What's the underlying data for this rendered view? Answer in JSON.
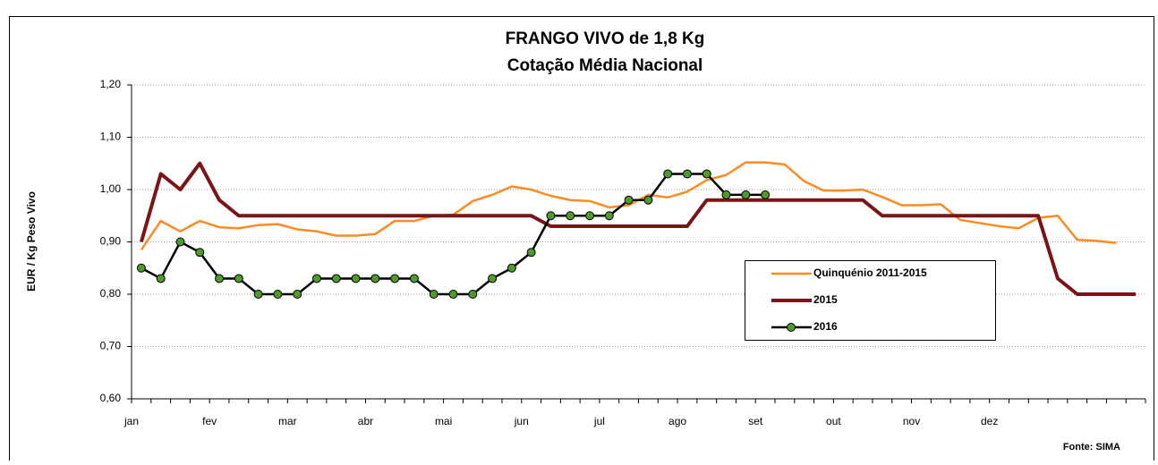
{
  "chart_data": {
    "type": "line",
    "title": "FRANGO VIVO de 1,8 Kg",
    "subtitle": "Cotação Média Nacional",
    "y_label": "EUR / Kg Peso Vivo",
    "source": "Fonte: SIMA",
    "categories": [
      "jan",
      null,
      null,
      null,
      "fev",
      null,
      null,
      null,
      "mar",
      null,
      null,
      null,
      "abr",
      null,
      null,
      null,
      "mai",
      null,
      null,
      null,
      "jun",
      null,
      null,
      null,
      "jul",
      null,
      null,
      null,
      "ago",
      null,
      null,
      null,
      "set",
      null,
      null,
      null,
      "out",
      null,
      null,
      null,
      "nov",
      null,
      null,
      null,
      "dez",
      null,
      null,
      null,
      null,
      null,
      null,
      null
    ],
    "ylim": [
      0.6,
      1.2
    ],
    "yticks": [
      {
        "value": 0.6,
        "label": "0,60"
      },
      {
        "value": 0.7,
        "label": "0,70"
      },
      {
        "value": 0.8,
        "label": "0,80"
      },
      {
        "value": 0.9,
        "label": "0,90"
      },
      {
        "value": 1.0,
        "label": "1,00"
      },
      {
        "value": 1.1,
        "label": "1,10"
      },
      {
        "value": 1.2,
        "label": "1,20"
      }
    ],
    "grid": true,
    "series": [
      {
        "name": "Quinquénio 2011-2015",
        "color": "#fb8c23",
        "width": 2.5,
        "markers": false,
        "values": [
          0.885,
          0.94,
          0.92,
          0.94,
          0.928,
          0.926,
          0.932,
          0.934,
          0.924,
          0.92,
          0.912,
          0.912,
          0.915,
          0.94,
          0.94,
          0.95,
          0.952,
          0.978,
          0.99,
          1.006,
          1.0,
          0.988,
          0.98,
          0.978,
          0.966,
          0.97,
          0.99,
          0.985,
          0.996,
          1.018,
          1.028,
          1.052,
          1.052,
          1.048,
          1.016,
          0.998,
          0.998,
          1.0,
          0.986,
          0.97,
          0.97,
          0.972,
          0.942,
          0.936,
          0.93,
          0.926,
          0.946,
          0.95,
          0.904,
          0.902,
          0.898,
          null
        ]
      },
      {
        "name": "2015",
        "color": "#7b1416",
        "width": 4,
        "markers": false,
        "values": [
          0.9,
          1.03,
          1.0,
          1.05,
          0.98,
          0.95,
          0.95,
          0.95,
          0.95,
          0.95,
          0.95,
          0.95,
          0.95,
          0.95,
          0.95,
          0.95,
          0.95,
          0.95,
          0.95,
          0.95,
          0.95,
          0.93,
          0.93,
          0.93,
          0.93,
          0.93,
          0.93,
          0.93,
          0.93,
          0.98,
          0.98,
          0.98,
          0.98,
          0.98,
          0.98,
          0.98,
          0.98,
          0.98,
          0.95,
          0.95,
          0.95,
          0.95,
          0.95,
          0.95,
          0.95,
          0.95,
          0.95,
          0.83,
          0.8,
          0.8,
          0.8,
          0.8
        ]
      },
      {
        "name": "2016",
        "color": "#000000",
        "width": 2.5,
        "markers": true,
        "marker_color": "#4e9a2a",
        "values": [
          0.85,
          0.83,
          0.9,
          0.88,
          0.83,
          0.83,
          0.8,
          0.8,
          0.8,
          0.83,
          0.83,
          0.83,
          0.83,
          0.83,
          0.83,
          0.8,
          0.8,
          0.8,
          0.83,
          0.85,
          0.88,
          0.95,
          0.95,
          0.95,
          0.95,
          0.98,
          0.98,
          1.03,
          1.03,
          1.03,
          0.99,
          0.99,
          0.99,
          null,
          null,
          null,
          null,
          null,
          null,
          null,
          null,
          null,
          null,
          null,
          null,
          null,
          null,
          null,
          null,
          null,
          null,
          null
        ]
      }
    ]
  }
}
